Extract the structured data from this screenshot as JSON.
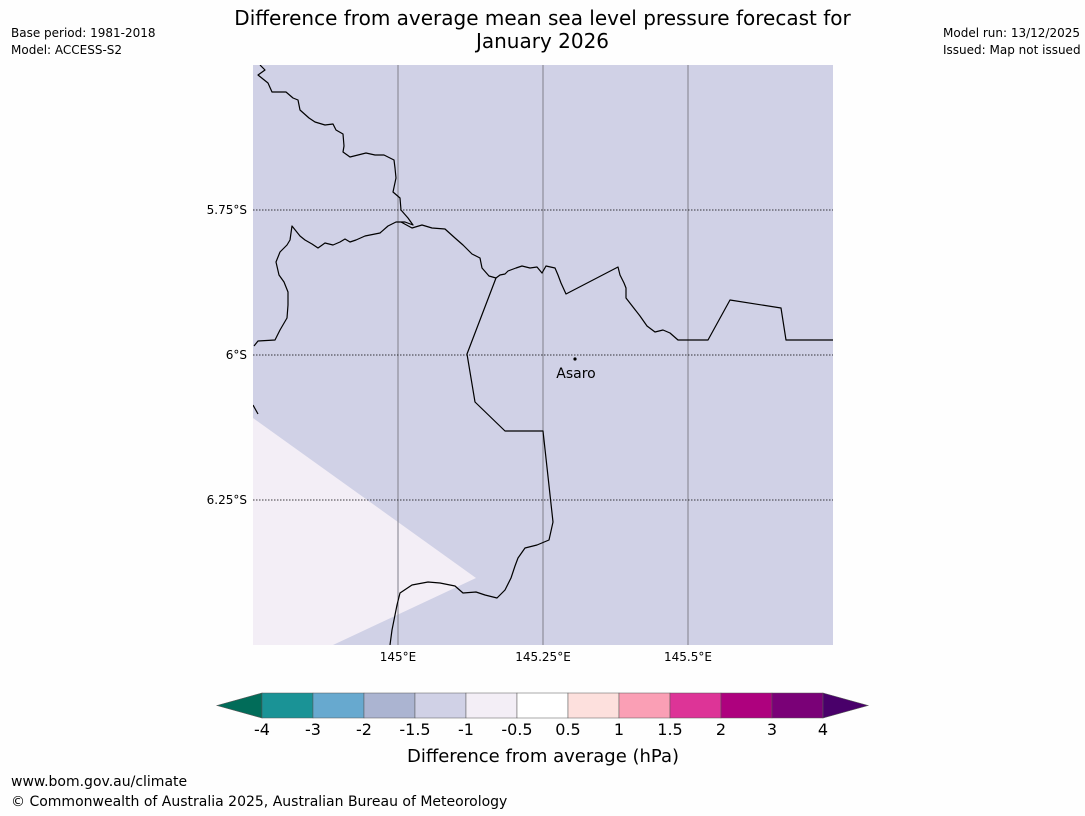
{
  "header": {
    "title_line1": "Difference from average mean sea level pressure forecast for",
    "title_line2": "January 2026",
    "base_period": "Base period: 1981-2018",
    "model": "Model: ACCESS-S2",
    "model_run": "Model run: 13/12/2025",
    "issued": "Issued: Map not issued"
  },
  "map": {
    "latitude_labels": [
      "5.75°S",
      "6°S",
      "6.25°S"
    ],
    "longitude_labels": [
      "145°E",
      "145.25°E",
      "145.5°E"
    ],
    "place": {
      "name": "Asaro",
      "lon": 145.3,
      "lat": -6.01
    },
    "field_color_main": "#d0d1e6",
    "field_color_lower_left": "#f3eef6",
    "coastline_color": "#000000",
    "gridline_color": "#7f7f8a"
  },
  "legend": {
    "title": "Difference from average (hPa)",
    "ticks": [
      "-4",
      "-3",
      "-2",
      "-1.5",
      "-1",
      "-0.5",
      "0.5",
      "1",
      "1.5",
      "2",
      "3",
      "4"
    ],
    "colors": [
      "#1a9396",
      "#67a9cf",
      "#abb4d1",
      "#d0d1e6",
      "#f3eef6",
      "#ffffff",
      "#fde0dd",
      "#fa9fb5",
      "#dd3497",
      "#ae017e",
      "#7a0177"
    ],
    "extend_low_color": "#016c59",
    "extend_high_color": "#49006a"
  },
  "footer": {
    "url": "www.bom.gov.au/climate",
    "copyright": "© Commonwealth of Australia 2025, Australian Bureau of Meteorology"
  }
}
